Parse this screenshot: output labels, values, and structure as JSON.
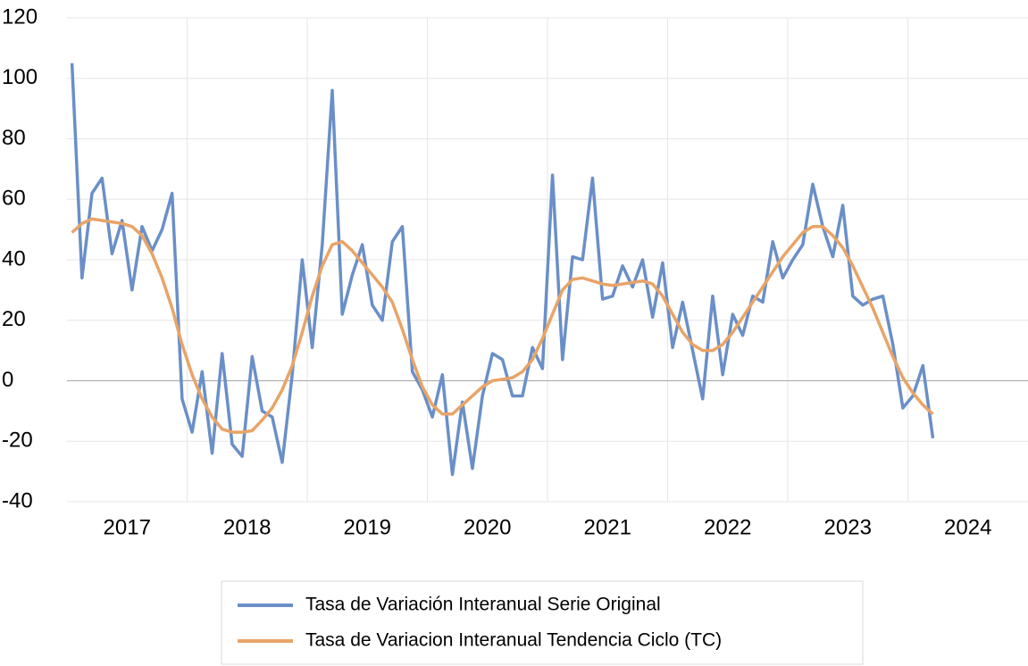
{
  "chart_data": {
    "type": "line",
    "years": [
      "2017",
      "2018",
      "2019",
      "2020",
      "2021",
      "2022",
      "2023",
      "2024"
    ],
    "ylim": [
      -40,
      120
    ],
    "yticks": [
      -40,
      -20,
      0,
      20,
      40,
      60,
      80,
      100,
      120
    ],
    "grid": true,
    "legend": "bottom",
    "series": [
      {
        "name": "Tasa de Variación Interanual Serie Original",
        "color": "#6a8fc8",
        "values": [
          105,
          34,
          62,
          67,
          42,
          53,
          30,
          51,
          43,
          50,
          62,
          -6,
          -17,
          3,
          -24,
          9,
          -21,
          -25,
          8,
          -10,
          -12,
          -27,
          2,
          40,
          11,
          45,
          96,
          22,
          35,
          45,
          25,
          20,
          46,
          51,
          3,
          -3,
          -12,
          2,
          -31,
          -7,
          -29,
          -5,
          9,
          7,
          -5,
          -5,
          11,
          4,
          68,
          7,
          41,
          40,
          67,
          27,
          28,
          38,
          31,
          40,
          21,
          39,
          11,
          26,
          10,
          -6,
          28,
          2,
          22,
          15,
          28,
          26,
          46,
          34,
          40,
          45,
          65,
          51,
          41,
          58,
          28,
          25,
          27,
          28,
          12,
          -9,
          -5,
          5,
          -19
        ]
      },
      {
        "name": "Tasa de Variacion Interanual Tendencia Ciclo (TC)",
        "color": "#e8a468",
        "values": [
          49,
          52,
          53.5,
          53,
          52.5,
          52,
          51,
          48,
          42,
          34,
          24,
          12,
          2,
          -6,
          -12,
          -16,
          -17,
          -17,
          -16.5,
          -13,
          -9,
          -3,
          5,
          16,
          28,
          38,
          45,
          46,
          43,
          39,
          35,
          31,
          26,
          17,
          7,
          -2,
          -8,
          -11,
          -11,
          -8,
          -5,
          -2,
          0,
          0.5,
          1,
          3,
          7,
          14,
          22,
          30,
          33.5,
          34,
          33,
          32,
          31.5,
          32,
          32.5,
          33,
          32,
          28,
          22,
          16,
          12,
          10,
          10,
          12,
          16,
          21,
          26,
          31,
          36,
          41,
          45,
          49,
          51,
          51,
          48,
          44,
          38,
          31,
          24,
          16,
          8,
          1,
          -4,
          -8,
          -11
        ]
      }
    ]
  }
}
